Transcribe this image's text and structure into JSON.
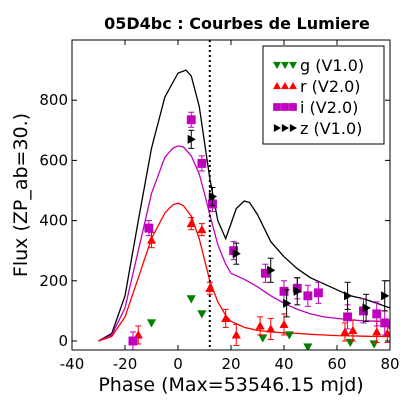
{
  "chart_data": {
    "type": "scatter",
    "title": "05D4bc : Courbes de Lumiere",
    "xlabel": "Phase (Max=53546.15 mjd)",
    "ylabel": "Flux (ZP_ab=30.)",
    "xlim": [
      -40,
      80
    ],
    "ylim": [
      -30,
      1000
    ],
    "xticks": [
      -40,
      -20,
      0,
      20,
      40,
      60,
      80
    ],
    "yticks": [
      0,
      200,
      400,
      600,
      800
    ],
    "legend_position": "top-right",
    "vline_x": 12,
    "series": [
      {
        "name": "g (V1.0)",
        "color": "#008000",
        "marker": "triangle-down",
        "points": [
          {
            "x": -10,
            "y": 60,
            "err": 0
          },
          {
            "x": 5,
            "y": 140,
            "err": 0
          },
          {
            "x": 9,
            "y": 90,
            "err": 0
          },
          {
            "x": 32,
            "y": 10,
            "err": 0
          },
          {
            "x": 42,
            "y": 20,
            "err": 0
          },
          {
            "x": 49,
            "y": -20,
            "err": 0
          },
          {
            "x": 65,
            "y": -5,
            "err": 0
          },
          {
            "x": 74,
            "y": -10,
            "err": 0
          }
        ]
      },
      {
        "name": "r (V2.0)",
        "color": "#ff0000",
        "marker": "triangle-up",
        "points": [
          {
            "x": -15,
            "y": 20,
            "err": 30
          },
          {
            "x": -10,
            "y": 335,
            "err": 25
          },
          {
            "x": 5,
            "y": 390,
            "err": 20
          },
          {
            "x": 9,
            "y": 370,
            "err": 20
          },
          {
            "x": 12,
            "y": 175,
            "err": 20
          },
          {
            "x": 18,
            "y": 75,
            "err": 30
          },
          {
            "x": 22,
            "y": 20,
            "err": 35
          },
          {
            "x": 31,
            "y": 50,
            "err": 30
          },
          {
            "x": 35,
            "y": 40,
            "err": 35
          },
          {
            "x": 40,
            "y": 55,
            "err": 35
          },
          {
            "x": 63,
            "y": 30,
            "err": 30
          },
          {
            "x": 66,
            "y": 35,
            "err": 35
          },
          {
            "x": 75,
            "y": 30,
            "err": 35
          },
          {
            "x": 79,
            "y": 25,
            "err": 30
          }
        ]
      },
      {
        "name": "i (V2.0)",
        "color": "#bf00bf",
        "marker": "square",
        "points": [
          {
            "x": -17,
            "y": 0,
            "err": 30
          },
          {
            "x": -11,
            "y": 375,
            "err": 25
          },
          {
            "x": 5,
            "y": 735,
            "err": 25
          },
          {
            "x": 9,
            "y": 590,
            "err": 25
          },
          {
            "x": 13,
            "y": 455,
            "err": 25
          },
          {
            "x": 21,
            "y": 300,
            "err": 30
          },
          {
            "x": 33,
            "y": 225,
            "err": 30
          },
          {
            "x": 40,
            "y": 165,
            "err": 35
          },
          {
            "x": 45,
            "y": 175,
            "err": 35
          },
          {
            "x": 49,
            "y": 150,
            "err": 35
          },
          {
            "x": 53,
            "y": 160,
            "err": 35
          },
          {
            "x": 64,
            "y": 80,
            "err": 40
          },
          {
            "x": 70,
            "y": 100,
            "err": 40
          },
          {
            "x": 75,
            "y": 90,
            "err": 40
          },
          {
            "x": 78,
            "y": 60,
            "err": 40
          },
          {
            "x": 81,
            "y": 55,
            "err": 40
          }
        ]
      },
      {
        "name": "z (V1.0)",
        "color": "#000000",
        "marker": "triangle-right",
        "points": [
          {
            "x": 5,
            "y": 670,
            "err": 30
          },
          {
            "x": 13,
            "y": 480,
            "err": 30
          },
          {
            "x": 22,
            "y": 290,
            "err": 35
          },
          {
            "x": 35,
            "y": 235,
            "err": 40
          },
          {
            "x": 41,
            "y": 125,
            "err": 45
          },
          {
            "x": 45,
            "y": 165,
            "err": 45
          },
          {
            "x": 64,
            "y": 150,
            "err": 45
          },
          {
            "x": 71,
            "y": 110,
            "err": 45
          },
          {
            "x": 78,
            "y": 150,
            "err": 50
          }
        ]
      }
    ],
    "curves": [
      {
        "color": "#000000",
        "x": [
          -30,
          -25,
          -20,
          -15,
          -10,
          -5,
          0,
          3,
          5,
          8,
          10,
          12,
          15,
          18,
          20,
          22,
          25,
          27,
          30,
          35,
          40,
          45,
          50,
          55,
          60,
          65,
          70,
          75,
          80
        ],
        "y": [
          0,
          25,
          150,
          400,
          640,
          810,
          890,
          900,
          880,
          780,
          660,
          540,
          400,
          340,
          390,
          440,
          465,
          460,
          420,
          330,
          280,
          240,
          210,
          190,
          170,
          150,
          140,
          125,
          110
        ]
      },
      {
        "color": "#bf00bf",
        "x": [
          -30,
          -25,
          -20,
          -15,
          -10,
          -5,
          -2,
          0,
          2,
          5,
          8,
          10,
          12,
          15,
          18,
          20,
          25,
          30,
          35,
          40,
          45,
          50,
          55,
          60,
          65,
          70,
          75,
          80
        ],
        "y": [
          0,
          20,
          110,
          300,
          490,
          610,
          640,
          648,
          645,
          615,
          555,
          490,
          420,
          320,
          255,
          225,
          205,
          180,
          150,
          125,
          105,
          90,
          80,
          75,
          70,
          67,
          66,
          65
        ]
      },
      {
        "color": "#ff0000",
        "x": [
          -30,
          -25,
          -20,
          -15,
          -10,
          -5,
          -2,
          0,
          2,
          5,
          8,
          10,
          12,
          15,
          18,
          20,
          25,
          30,
          35,
          40,
          45,
          50,
          55,
          60,
          65,
          70,
          75,
          80
        ],
        "y": [
          0,
          15,
          80,
          210,
          340,
          425,
          452,
          458,
          450,
          415,
          340,
          270,
          200,
          130,
          85,
          65,
          45,
          35,
          30,
          27,
          25,
          22,
          20,
          18,
          17,
          16,
          15,
          15
        ]
      }
    ]
  }
}
